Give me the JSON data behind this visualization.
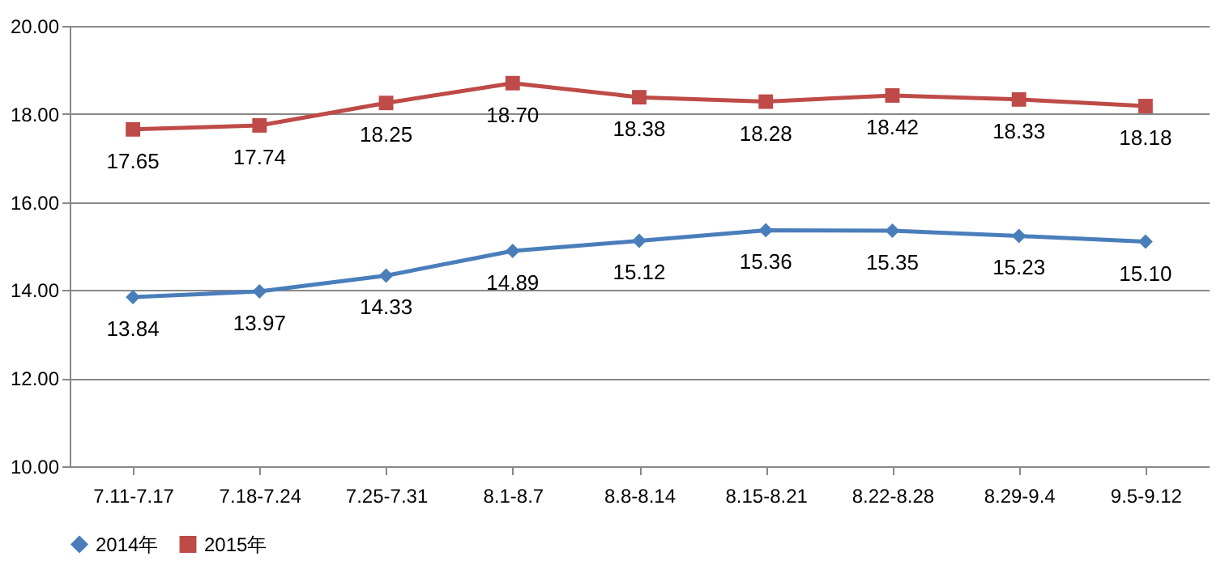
{
  "chart_data": {
    "type": "line",
    "categories": [
      "7.11-7.17",
      "7.18-7.24",
      "7.25-7.31",
      "8.1-8.7",
      "8.8-8.14",
      "8.15-8.21",
      "8.22-8.28",
      "8.29-9.4",
      "9.5-9.12"
    ],
    "series": [
      {
        "name": "2014年",
        "color": "#4a7ebb",
        "marker": "diamond",
        "values": [
          13.84,
          13.97,
          14.33,
          14.89,
          15.12,
          15.36,
          15.35,
          15.23,
          15.1
        ],
        "value_labels": [
          "13.84",
          "13.97",
          "14.33",
          "14.89",
          "15.12",
          "15.36",
          "15.35",
          "15.23",
          "15.10"
        ]
      },
      {
        "name": "2015年",
        "color": "#be4b48",
        "marker": "square",
        "values": [
          17.65,
          17.74,
          18.25,
          18.7,
          18.38,
          18.28,
          18.42,
          18.33,
          18.18
        ],
        "value_labels": [
          "17.65",
          "17.74",
          "18.25",
          "18.70",
          "18.38",
          "18.28",
          "18.42",
          "18.33",
          "18.18"
        ]
      }
    ],
    "ylim": [
      10,
      20
    ],
    "yticks": [
      {
        "value": 10,
        "label": "10.00"
      },
      {
        "value": 12,
        "label": "12.00"
      },
      {
        "value": 14,
        "label": "14.00"
      },
      {
        "value": 16,
        "label": "16.00"
      },
      {
        "value": 18,
        "label": "18.00"
      },
      {
        "value": 20,
        "label": "20.00"
      }
    ],
    "grid": "y",
    "legend": "bottom",
    "line_style": "solid"
  }
}
